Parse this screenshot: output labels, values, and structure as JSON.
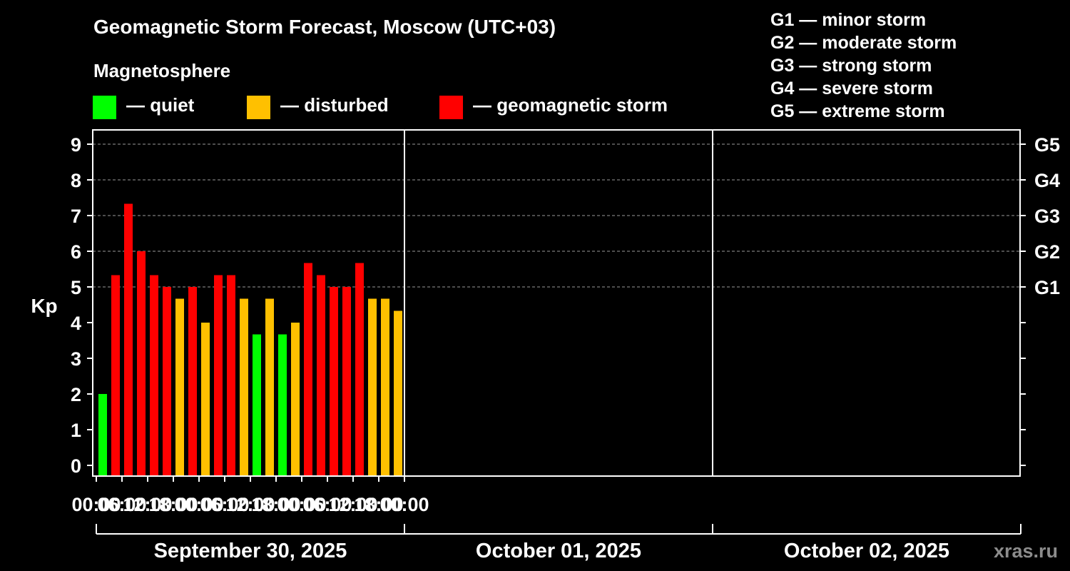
{
  "title": "Geomagnetic Storm Forecast, Moscow (UTC+03)",
  "legend": {
    "heading": "Magnetosphere",
    "items": [
      {
        "label": "— quiet",
        "color": "#00ff00"
      },
      {
        "label": "— disturbed",
        "color": "#ffc000"
      },
      {
        "label": "— geomagnetic storm",
        "color": "#ff0000"
      }
    ]
  },
  "storm_scale": [
    "G1 — minor storm",
    "G2 — moderate storm",
    "G3 — strong storm",
    "G4 — severe storm",
    "G5 — extreme storm"
  ],
  "watermark": "xras.ru",
  "chart_data": {
    "type": "bar",
    "ylabel": "Kp",
    "ylim": [
      0,
      9
    ],
    "yticks": [
      0,
      1,
      2,
      3,
      4,
      5,
      6,
      7,
      8,
      9
    ],
    "right_axis": [
      {
        "kp": 5,
        "label": "G1"
      },
      {
        "kp": 6,
        "label": "G2"
      },
      {
        "kp": 7,
        "label": "G3"
      },
      {
        "kp": 8,
        "label": "G4"
      },
      {
        "kp": 9,
        "label": "G5"
      }
    ],
    "grid": "horizontal dashed at Kp 5-9",
    "x_tick_labels": [
      "00:00",
      "06:00",
      "12:00",
      "18:00",
      "00:00",
      "06:00",
      "12:00",
      "18:00",
      "00:00",
      "06:00",
      "12:00",
      "18:00",
      "00:00"
    ],
    "days": [
      "September 30, 2025",
      "October 01, 2025",
      "October 02, 2025"
    ],
    "interval_hours": 3,
    "values": [
      2.0,
      5.33,
      7.33,
      6.0,
      5.33,
      5.0,
      4.67,
      5.0,
      4.0,
      5.33,
      5.33,
      4.67,
      3.67,
      4.67,
      3.67,
      4.0,
      5.67,
      5.33,
      5.0,
      5.0,
      5.67,
      4.67,
      4.67,
      4.33
    ],
    "levels": [
      "quiet",
      "storm",
      "storm",
      "storm",
      "storm",
      "storm",
      "disturbed",
      "storm",
      "disturbed",
      "storm",
      "storm",
      "disturbed",
      "quiet",
      "disturbed",
      "quiet",
      "disturbed",
      "storm",
      "storm",
      "storm",
      "storm",
      "storm",
      "disturbed",
      "disturbed",
      "disturbed"
    ]
  }
}
